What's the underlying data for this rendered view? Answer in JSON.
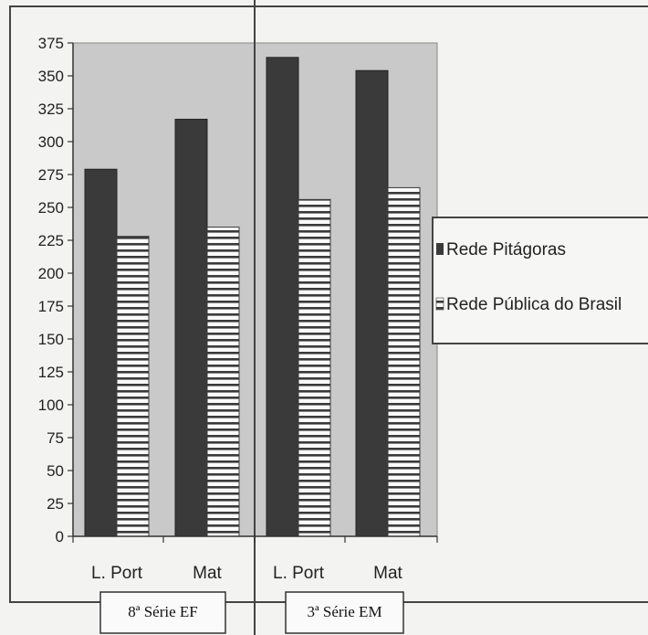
{
  "chart_data": {
    "type": "bar",
    "categories": [
      "L. Port",
      "Mat",
      "L. Port",
      "Mat"
    ],
    "groups": [
      {
        "label": "8ª Série EF",
        "categories": [
          "L. Port",
          "Mat"
        ]
      },
      {
        "label": "3ª Série EM",
        "categories": [
          "L. Port",
          "Mat"
        ]
      }
    ],
    "series": [
      {
        "name": "Rede Pitágoras",
        "values": [
          279,
          317,
          364,
          354
        ],
        "color": "#3a3a3a",
        "pattern": "solid"
      },
      {
        "name": "Rede Pública do Brasil",
        "values": [
          228,
          235,
          256,
          265
        ],
        "color": "#3a3a3a",
        "pattern": "horizontal-stripes"
      }
    ],
    "yticks": [
      0,
      25,
      50,
      75,
      100,
      125,
      150,
      175,
      200,
      225,
      250,
      275,
      300,
      325,
      350,
      375
    ],
    "ylim": [
      0,
      375
    ],
    "grid": false,
    "legend_position": "right",
    "plot_background": "#c9c9c9"
  }
}
